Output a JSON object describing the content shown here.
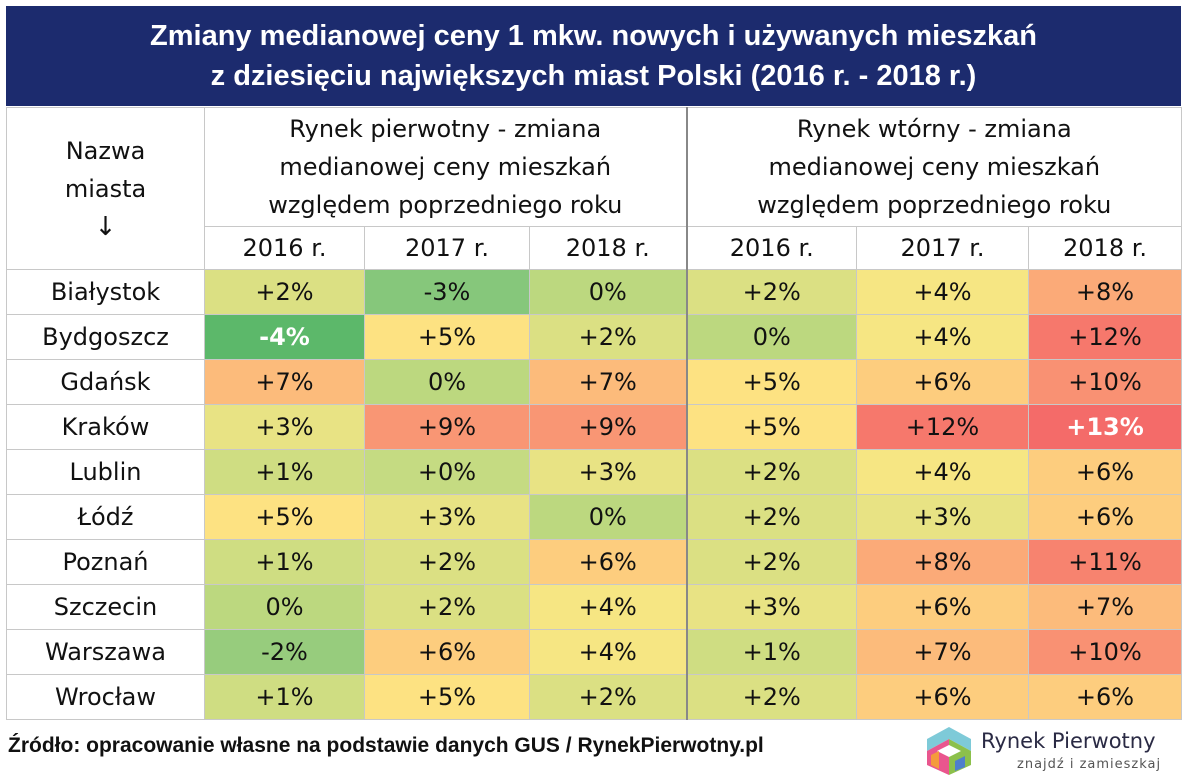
{
  "title": {
    "line1": "Zmiany medianowej ceny 1 mkw. nowych i używanych mieszkań",
    "line2": "z dziesięciu największych miast Polski (2016 r. - 2018 r.)"
  },
  "headers": {
    "city": [
      "Nazwa",
      "miasta",
      "↓"
    ],
    "primary": [
      "Rynek pierwotny - zmiana",
      "medianowej ceny mieszkań",
      "względem poprzedniego roku"
    ],
    "secondary": [
      "Rynek wtórny - zmiana",
      "medianowej ceny mieszkań",
      "względem poprzedniego roku"
    ],
    "years": [
      "2016 r.",
      "2017 r.",
      "2018 r.",
      "2016 r.",
      "2017 r.",
      "2018 r."
    ]
  },
  "chart_data": {
    "type": "heatmap",
    "title": "Zmiany medianowej ceny 1 mkw. nowych i używanych mieszkań z dziesięciu największych miast Polski (2016 r. - 2018 r.)",
    "rows": [
      {
        "city": "Białystok",
        "values": [
          "+2%",
          "-3%",
          "0%",
          "+2%",
          "+4%",
          "+8%"
        ]
      },
      {
        "city": "Bydgoszcz",
        "values": [
          "-4%",
          "+5%",
          "+2%",
          "0%",
          "+4%",
          "+12%"
        ]
      },
      {
        "city": "Gdańsk",
        "values": [
          "+7%",
          "0%",
          "+7%",
          "+5%",
          "+6%",
          "+10%"
        ]
      },
      {
        "city": "Kraków",
        "values": [
          "+3%",
          "+9%",
          "+9%",
          "+5%",
          "+12%",
          "+13%"
        ]
      },
      {
        "city": "Lublin",
        "values": [
          "+1%",
          "+0%",
          "+3%",
          "+2%",
          "+4%",
          "+6%"
        ]
      },
      {
        "city": "Łódź",
        "values": [
          "+5%",
          "+3%",
          "0%",
          "+2%",
          "+3%",
          "+6%"
        ]
      },
      {
        "city": "Poznań",
        "values": [
          "+1%",
          "+2%",
          "+6%",
          "+2%",
          "+8%",
          "+11%"
        ]
      },
      {
        "city": "Szczecin",
        "values": [
          "0%",
          "+2%",
          "+4%",
          "+3%",
          "+6%",
          "+7%"
        ]
      },
      {
        "city": "Warszawa",
        "values": [
          "-2%",
          "+6%",
          "+4%",
          "+1%",
          "+7%",
          "+10%"
        ]
      },
      {
        "city": "Wrocław",
        "values": [
          "+1%",
          "+5%",
          "+2%",
          "+2%",
          "+6%",
          "+6%"
        ]
      }
    ],
    "colors": {
      "-4%": "#5cb86a",
      "-3%": "#86c77b",
      "-2%": "#97cc7d",
      "0%": "#bcd87f",
      "+0%": "#c5db82",
      "+1%": "#cfdd82",
      "+2%": "#dbe083",
      "+3%": "#e8e384",
      "+4%": "#f6e683",
      "+5%": "#fde282",
      "+6%": "#fdcd7e",
      "+7%": "#fcbb7b",
      "+8%": "#fbaa78",
      "+9%": "#f99674",
      "+10%": "#f99173",
      "+11%": "#f7836f",
      "+12%": "#f6786c",
      "+13%": "#f46b69"
    },
    "bold_cells": [
      [
        1,
        0
      ],
      [
        3,
        5
      ]
    ]
  },
  "footer": {
    "source": "Źródło: opracowanie własne na podstawie danych GUS / RynekPierwotny.pl"
  },
  "logo": {
    "name": "Rynek Pierwotny",
    "tagline": "znajdź i zamieszkaj"
  }
}
